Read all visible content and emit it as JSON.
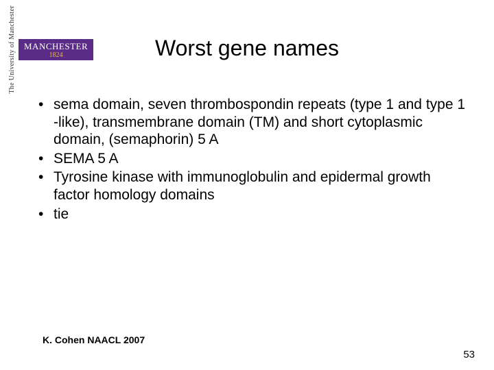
{
  "logo": {
    "vertical_text": "The University of Manchester",
    "badge_main": "MANCHESTER",
    "badge_year": "1824",
    "badge_bg": "#5b2c87",
    "badge_fg": "#ffffff",
    "year_color": "#e8b84a"
  },
  "slide": {
    "title": "Worst gene names",
    "bullets": [
      "sema domain, seven thrombospondin repeats (type 1 and type 1 -like), transmembrane domain (TM) and short cytoplasmic domain, (semaphorin) 5 A",
      "SEMA 5 A",
      "Tyrosine kinase with immunoglobulin and epidermal growth factor homology domains",
      "tie"
    ],
    "citation": "K. Cohen NAACL 2007",
    "page_number": "53"
  },
  "style": {
    "background_color": "#ffffff",
    "title_fontsize": 32,
    "body_fontsize": 21,
    "citation_fontsize": 14,
    "pagenum_fontsize": 15,
    "text_color": "#000000"
  }
}
